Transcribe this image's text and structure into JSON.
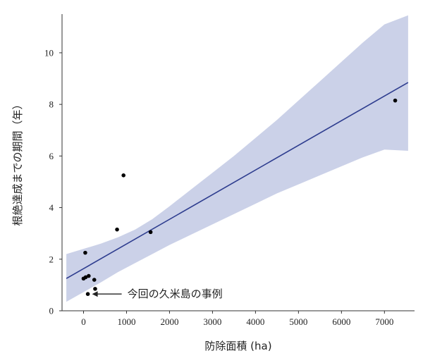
{
  "chart_data": {
    "type": "scatter",
    "xlabel": "防除面積 (ha)",
    "ylabel": "根絶達成までの期間（年）",
    "xlim": [
      -500,
      7700
    ],
    "ylim": [
      0,
      11.5
    ],
    "x_ticks": [
      0,
      1000,
      2000,
      3000,
      4000,
      5000,
      6000,
      7000
    ],
    "y_ticks": [
      0,
      2,
      4,
      6,
      8,
      10
    ],
    "grid": false,
    "points": [
      {
        "x": 0,
        "y": 1.25
      },
      {
        "x": 40,
        "y": 2.25
      },
      {
        "x": 50,
        "y": 1.3
      },
      {
        "x": 100,
        "y": 0.65
      },
      {
        "x": 120,
        "y": 1.35
      },
      {
        "x": 250,
        "y": 1.2
      },
      {
        "x": 270,
        "y": 0.85
      },
      {
        "x": 780,
        "y": 3.15
      },
      {
        "x": 930,
        "y": 5.25
      },
      {
        "x": 1560,
        "y": 3.05
      },
      {
        "x": 7250,
        "y": 8.15
      }
    ],
    "regression": {
      "x": [
        -400,
        7550
      ],
      "y": [
        1.25,
        8.85
      ]
    },
    "confidence_band": {
      "x": [
        -400,
        400,
        800,
        1200,
        1600,
        2000,
        2500,
        3000,
        3500,
        4000,
        4500,
        5000,
        5500,
        6000,
        6500,
        7000,
        7550
      ],
      "upper": [
        2.2,
        2.6,
        2.85,
        3.15,
        3.55,
        4.05,
        4.7,
        5.35,
        6.0,
        6.7,
        7.4,
        8.15,
        8.9,
        9.65,
        10.4,
        11.1,
        11.45
      ],
      "lower": [
        0.35,
        1.1,
        1.5,
        1.85,
        2.2,
        2.55,
        2.95,
        3.35,
        3.75,
        4.15,
        4.55,
        4.9,
        5.25,
        5.6,
        5.95,
        6.25,
        6.2
      ]
    },
    "annotation": {
      "text": "今回の久米島の事例",
      "x": 100,
      "y": 0.65
    },
    "colors": {
      "line": "#2e3d8f",
      "band": "#c5cce6",
      "point": "#000000",
      "axis": "#333333"
    }
  }
}
